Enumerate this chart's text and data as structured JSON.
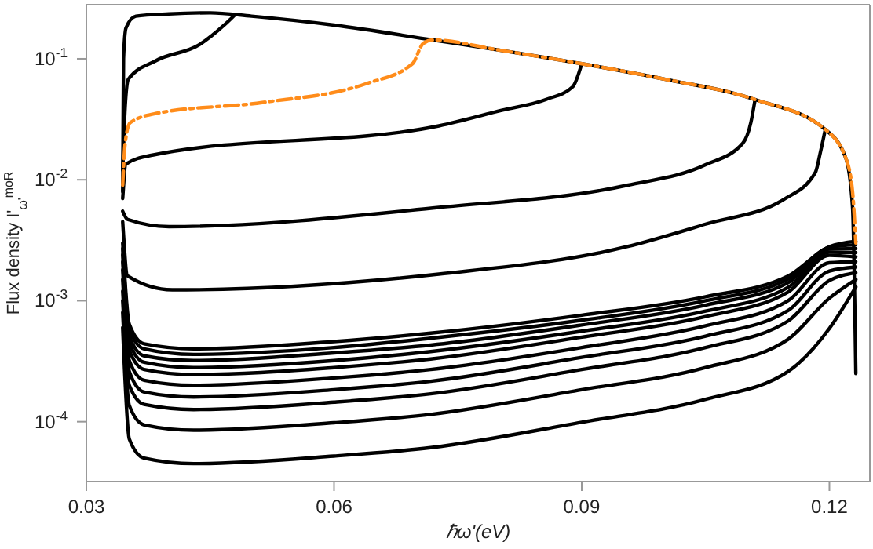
{
  "chart_data": {
    "type": "line",
    "xlabel": "ℏω'(eV)",
    "ylabel": "Flux density I'$_{ω'}$$^{moR}$",
    "log": "y",
    "marker": "none",
    "xlim": [
      0.03,
      0.1249
    ],
    "xticks": [
      0.03,
      0.06,
      0.09,
      0.12
    ],
    "ylim": [
      3.2e-05,
      0.28
    ],
    "yticks": [
      {
        "value": 0.0001,
        "label": "10$^{-4}$"
      },
      {
        "value": 0.001,
        "label": "10$^{-3}$"
      },
      {
        "value": 0.01,
        "label": "10$^{-2}$"
      },
      {
        "value": 0.1,
        "label": "10$^{-1}$"
      }
    ],
    "series": [
      {
        "color": "#000000",
        "x": [
          0.0344,
          0.0345,
          0.0348,
          0.036,
          0.04,
          0.045,
          0.05,
          0.06,
          0.072,
          0.08,
          0.09,
          0.1,
          0.111,
          0.1195,
          0.122,
          0.1228,
          0.1232
        ],
        "values": [
          0.008,
          0.1,
          0.18,
          0.225,
          0.235,
          0.24,
          0.225,
          0.19,
          0.143,
          0.118,
          0.091,
          0.068,
          0.046,
          0.026,
          0.015,
          0.006,
          0.00025
        ]
      },
      {
        "color": "#000000",
        "x": [
          0.0344,
          0.0347,
          0.0351,
          0.0385,
          0.0437,
          0.0467,
          0.048
        ],
        "values": [
          0.012,
          0.04,
          0.068,
          0.097,
          0.131,
          0.19,
          0.231
        ]
      },
      {
        "color": "#000000",
        "x": [
          0.0344,
          0.0348,
          0.038,
          0.0727,
          0.0803,
          0.0857,
          0.0889,
          0.09
        ],
        "values": [
          0.007,
          0.0135,
          0.016,
          0.0279,
          0.0375,
          0.0462,
          0.0586,
          0.091
        ]
      },
      {
        "color": "#000000",
        "x": [
          0.0344,
          0.035,
          0.04,
          0.0727,
          0.0955,
          0.105,
          0.1095,
          0.1105,
          0.111
        ],
        "values": [
          0.0055,
          0.0047,
          0.0041,
          0.0059,
          0.009,
          0.0133,
          0.02,
          0.03,
          0.046
        ]
      },
      {
        "color": "#000000",
        "x": [
          0.0344,
          0.035,
          0.0404,
          0.0727,
          0.0955,
          0.105,
          0.1145,
          0.1183,
          0.1189,
          0.1195
        ],
        "values": [
          0.0045,
          0.0016,
          0.00123,
          0.00166,
          0.0028,
          0.0043,
          0.0069,
          0.0115,
          0.0168,
          0.026
        ]
      },
      {
        "color": "#000000",
        "x": [
          0.0344,
          0.0352,
          0.037,
          0.043,
          0.06,
          0.0717,
          0.09,
          0.105,
          0.115,
          0.12,
          0.1232
        ],
        "values": [
          0.003,
          0.00064,
          0.00044,
          0.0004,
          0.00046,
          0.00054,
          0.00076,
          0.00108,
          0.0016,
          0.0028,
          0.0031
        ]
      },
      {
        "color": "#000000",
        "x": [
          0.0344,
          0.0352,
          0.037,
          0.043,
          0.06,
          0.0717,
          0.09,
          0.105,
          0.115,
          0.12,
          0.1232
        ],
        "values": [
          0.0027,
          0.00058,
          0.0004,
          0.00036,
          0.00041,
          0.00049,
          0.00069,
          0.001,
          0.00151,
          0.00276,
          0.0029
        ]
      },
      {
        "color": "#000000",
        "x": [
          0.0344,
          0.0352,
          0.037,
          0.043,
          0.06,
          0.0717,
          0.09,
          0.105,
          0.115,
          0.12,
          0.1232
        ],
        "values": [
          0.0024,
          0.00051,
          0.00035,
          0.00032,
          0.00037,
          0.00043,
          0.00063,
          0.00092,
          0.00141,
          0.00267,
          0.0027
        ]
      },
      {
        "color": "#000000",
        "x": [
          0.0344,
          0.0352,
          0.037,
          0.043,
          0.06,
          0.0717,
          0.09,
          0.105,
          0.115,
          0.12,
          0.1232
        ],
        "values": [
          0.0021,
          0.00045,
          0.00031,
          0.00028,
          0.00032,
          0.00038,
          0.00056,
          0.00082,
          0.00129,
          0.00252,
          0.0025
        ]
      },
      {
        "color": "#000000",
        "x": [
          0.0344,
          0.0352,
          0.037,
          0.043,
          0.06,
          0.0717,
          0.09,
          0.105,
          0.115,
          0.12,
          0.1232
        ],
        "values": [
          0.0018,
          0.00039,
          0.00027,
          0.000245,
          0.00028,
          0.00033,
          0.0005,
          0.00074,
          0.00118,
          0.00237,
          0.0023
        ]
      },
      {
        "color": "#000000",
        "x": [
          0.0344,
          0.0352,
          0.037,
          0.043,
          0.06,
          0.0717,
          0.09,
          0.105,
          0.115,
          0.12,
          0.1232
        ],
        "values": [
          0.0015,
          0.00032,
          0.00022,
          0.0002,
          0.00023,
          0.00027,
          0.00041,
          0.00062,
          0.001,
          0.00206,
          0.0021
        ]
      },
      {
        "color": "#000000",
        "x": [
          0.0344,
          0.0352,
          0.037,
          0.043,
          0.06,
          0.0717,
          0.09,
          0.105,
          0.115,
          0.12,
          0.1232
        ],
        "values": [
          0.0012,
          0.00026,
          0.000176,
          0.00016,
          0.000184,
          0.000216,
          0.00034,
          0.00051,
          0.00083,
          0.00176,
          0.0019
        ]
      },
      {
        "color": "#000000",
        "x": [
          0.0344,
          0.0352,
          0.037,
          0.043,
          0.06,
          0.0717,
          0.09,
          0.105,
          0.115,
          0.12,
          0.1232
        ],
        "values": [
          0.001,
          0.0002,
          0.000139,
          0.000126,
          0.000145,
          0.00017,
          0.00027,
          0.00041,
          0.00068,
          0.00147,
          0.0017
        ]
      },
      {
        "color": "#000000",
        "x": [
          0.0344,
          0.0352,
          0.037,
          0.043,
          0.06,
          0.0717,
          0.09,
          0.105,
          0.115,
          0.12,
          0.1232
        ],
        "values": [
          0.0008,
          0.000136,
          9.4e-05,
          8.5e-05,
          9.8e-05,
          0.000115,
          0.000184,
          0.00028,
          0.00048,
          0.00105,
          0.0015
        ]
      },
      {
        "color": "#000000",
        "x": [
          0.0344,
          0.0352,
          0.037,
          0.043,
          0.06,
          0.0717,
          0.09,
          0.105,
          0.115,
          0.12,
          0.1232
        ],
        "values": [
          0.0006,
          7.2e-05,
          5e-05,
          4.5e-05,
          5.2e-05,
          6.1e-05,
          9.9e-05,
          0.000153,
          0.00026,
          0.00059,
          0.0013
        ]
      },
      {
        "color": "#ff8c1a",
        "line_style": "dashed",
        "x": [
          0.0344,
          0.0347,
          0.0353,
          0.0385,
          0.0513,
          0.0638,
          0.0695,
          0.0708,
          0.072,
          0.08,
          0.09,
          0.1,
          0.111,
          0.1195,
          0.122,
          0.1228,
          0.1232
        ],
        "values": [
          0.009,
          0.02,
          0.0296,
          0.0354,
          0.0435,
          0.062,
          0.091,
          0.134,
          0.143,
          0.118,
          0.091,
          0.068,
          0.046,
          0.026,
          0.015,
          0.008,
          0.003
        ]
      }
    ]
  }
}
